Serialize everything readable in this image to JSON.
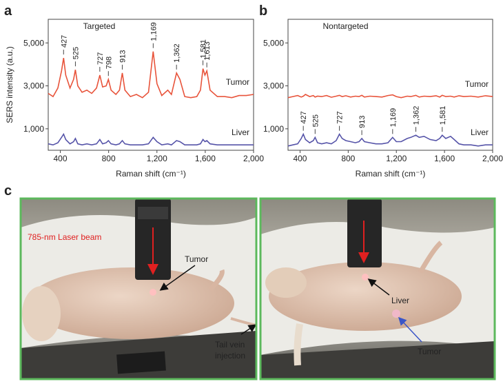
{
  "panel_labels": [
    "a",
    "b",
    "c"
  ],
  "chart_data": [
    {
      "type": "line",
      "annotation": "Targeted",
      "y_label": "SERS intensity (a.u.)",
      "x_label": "Raman shift (cm⁻¹)",
      "xlim": [
        300,
        2000
      ],
      "ylim": [
        0,
        6100
      ],
      "xticks": [
        400,
        800,
        {
          "value": 1200,
          "label": "1,200"
        },
        {
          "value": 1600,
          "label": "1,600"
        },
        {
          "value": 2000,
          "label": "2,000"
        }
      ],
      "yticks": [
        {
          "value": 1000,
          "label": "1,000"
        },
        {
          "value": 3000,
          "label": "3,000"
        },
        {
          "value": 5000,
          "label": "5,000"
        }
      ],
      "x": [
        300,
        340,
        380,
        410,
        427,
        445,
        480,
        510,
        525,
        545,
        580,
        620,
        660,
        700,
        727,
        750,
        780,
        798,
        820,
        860,
        890,
        913,
        935,
        980,
        1030,
        1080,
        1130,
        1169,
        1200,
        1240,
        1290,
        1320,
        1362,
        1390,
        1430,
        1480,
        1530,
        1560,
        1581,
        1597,
        1613,
        1640,
        1700,
        1760,
        1820,
        1880,
        1940,
        2000
      ],
      "series": [
        {
          "name": "Tumor",
          "color": "#e8533a",
          "values": [
            2650,
            2500,
            2900,
            3700,
            4300,
            3500,
            2900,
            3300,
            3750,
            3000,
            2700,
            2800,
            2650,
            2900,
            3500,
            2950,
            3000,
            3300,
            2800,
            2600,
            2800,
            3600,
            2800,
            2500,
            2600,
            2450,
            2700,
            4600,
            3100,
            2550,
            2800,
            2600,
            3600,
            3300,
            2500,
            2450,
            2500,
            2800,
            3800,
            3500,
            3700,
            2800,
            2500,
            2500,
            2450,
            2550,
            2550,
            2600
          ],
          "peaks": [
            427,
            525,
            727,
            798,
            913,
            {
              "value": 1169,
              "label": "1,169"
            },
            {
              "value": 1362,
              "label": "1,362"
            },
            {
              "value": 1581,
              "label": "1,581"
            },
            {
              "value": 1613,
              "label": "1,613"
            }
          ]
        },
        {
          "name": "Liver",
          "color": "#5553a8",
          "values": [
            300,
            250,
            350,
            600,
            750,
            500,
            300,
            400,
            550,
            300,
            250,
            300,
            250,
            300,
            500,
            300,
            350,
            450,
            300,
            250,
            300,
            450,
            300,
            250,
            250,
            250,
            300,
            600,
            400,
            250,
            300,
            250,
            450,
            400,
            250,
            250,
            250,
            300,
            500,
            400,
            450,
            300,
            250,
            250,
            250,
            250,
            250,
            250
          ]
        }
      ]
    },
    {
      "type": "line",
      "annotation": "Nontargeted",
      "x_label": "Raman shift (cm⁻¹)",
      "xlim": [
        300,
        2000
      ],
      "ylim": [
        0,
        6100
      ],
      "xticks": [
        400,
        800,
        {
          "value": 1200,
          "label": "1,200"
        },
        {
          "value": 1600,
          "label": "1,600"
        },
        {
          "value": 2000,
          "label": "2,000"
        }
      ],
      "yticks": [
        {
          "value": 1000,
          "label": "1,000"
        },
        {
          "value": 3000,
          "label": "3,000"
        },
        {
          "value": 5000,
          "label": "5,000"
        }
      ],
      "x": [
        300,
        340,
        380,
        410,
        427,
        445,
        480,
        510,
        525,
        545,
        580,
        620,
        660,
        700,
        727,
        750,
        780,
        820,
        860,
        890,
        913,
        935,
        980,
        1030,
        1080,
        1130,
        1169,
        1200,
        1240,
        1290,
        1320,
        1362,
        1390,
        1430,
        1480,
        1530,
        1560,
        1581,
        1610,
        1650,
        1680,
        1720,
        1760,
        1820,
        1880,
        1940,
        2000
      ],
      "series": [
        {
          "name": "Tumor",
          "color": "#e8533a",
          "values": [
            2450,
            2500,
            2550,
            2480,
            2520,
            2600,
            2500,
            2550,
            2480,
            2520,
            2500,
            2550,
            2470,
            2520,
            2560,
            2500,
            2540,
            2480,
            2520,
            2500,
            2560,
            2480,
            2520,
            2500,
            2480,
            2550,
            2580,
            2500,
            2450,
            2520,
            2500,
            2560,
            2480,
            2520,
            2500,
            2540,
            2480,
            2560,
            2500,
            2520,
            2480,
            2540,
            2500,
            2520,
            2480,
            2540,
            2500
          ]
        },
        {
          "name": "Liver",
          "color": "#5553a8",
          "values": [
            200,
            250,
            300,
            550,
            750,
            500,
            350,
            450,
            600,
            350,
            300,
            350,
            300,
            450,
            750,
            550,
            450,
            400,
            350,
            400,
            550,
            400,
            350,
            300,
            300,
            350,
            600,
            400,
            400,
            550,
            600,
            700,
            600,
            650,
            500,
            450,
            550,
            700,
            550,
            650,
            500,
            300,
            250,
            250,
            200,
            250,
            250
          ],
          "peaks": [
            427,
            525,
            727,
            913,
            {
              "value": 1169,
              "label": "1,169"
            },
            {
              "value": 1362,
              "label": "1,362"
            },
            {
              "value": 1581,
              "label": "1,581"
            }
          ]
        }
      ]
    }
  ],
  "photos": {
    "left": {
      "laser_label": "785-nm Laser beam",
      "tumor_label": "Tumor",
      "injection_label": [
        "Tail vein",
        "injection"
      ]
    },
    "right": {
      "liver_label": "Liver",
      "tumor_label": "Tumor"
    }
  }
}
